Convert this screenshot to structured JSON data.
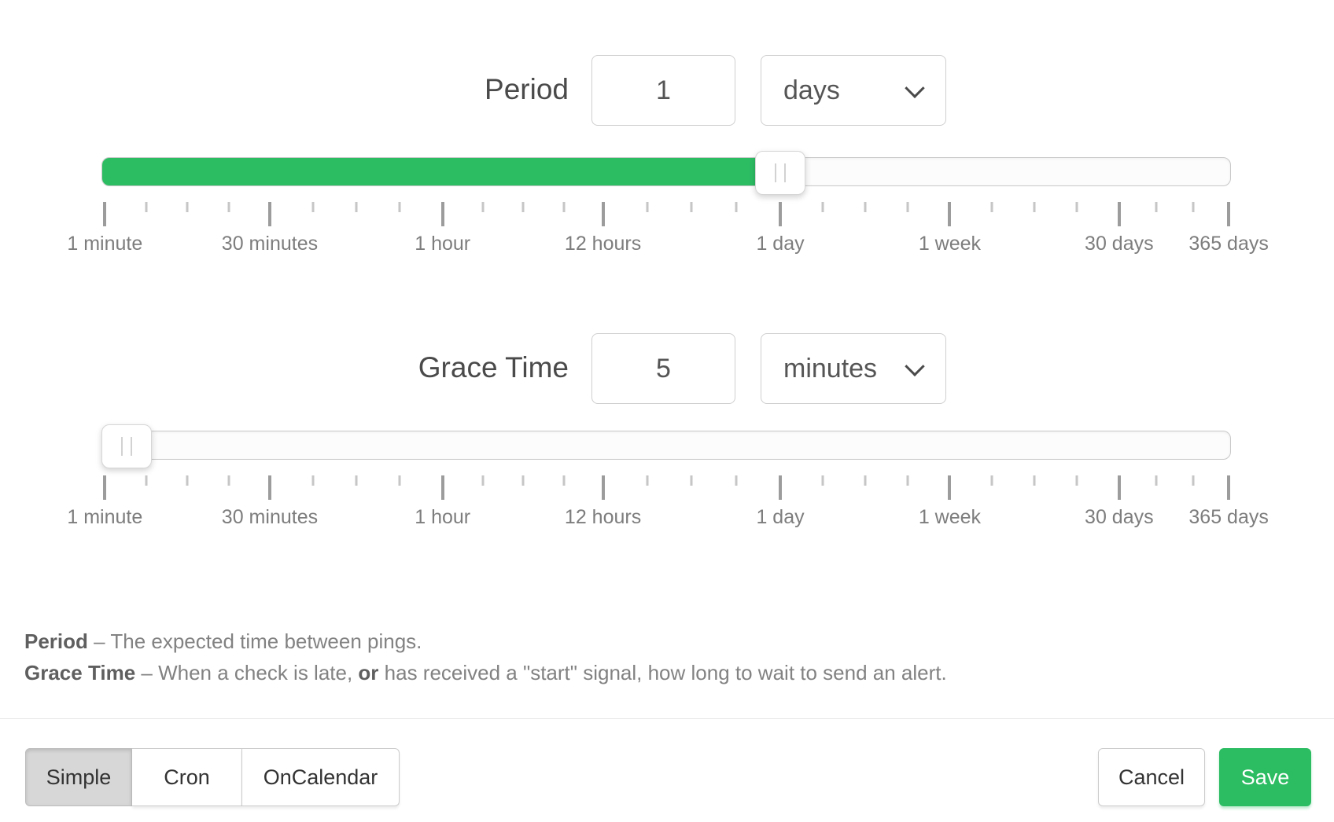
{
  "colors": {
    "accent_green": "#2cbc62",
    "handle_bg": "#ffffff",
    "track_bg": "#fcfcfc",
    "active_mode_bg": "#d7d7d7"
  },
  "period": {
    "label": "Period",
    "value": "1",
    "unit": "days",
    "slider": {
      "fill_percent": 60.1,
      "handle_percent": 60.1
    }
  },
  "grace": {
    "label": "Grace Time",
    "value": "5",
    "unit": "minutes",
    "slider": {
      "fill_percent": 2.2,
      "handle_percent": 2.2
    }
  },
  "scale": {
    "major_ticks": [
      {
        "pos": 0.3,
        "label": "1 minute"
      },
      {
        "pos": 14.9,
        "label": "30 minutes"
      },
      {
        "pos": 30.2,
        "label": "1 hour"
      },
      {
        "pos": 44.4,
        "label": "12 hours"
      },
      {
        "pos": 60.1,
        "label": "1 day"
      },
      {
        "pos": 75.1,
        "label": "1 week"
      },
      {
        "pos": 90.1,
        "label": "30 days"
      },
      {
        "pos": 99.8,
        "label": "365 days"
      }
    ],
    "minor_ticks": [
      3.95,
      7.6,
      11.25,
      18.73,
      22.55,
      26.38,
      33.78,
      37.35,
      40.93,
      48.33,
      52.25,
      56.18,
      63.85,
      67.6,
      71.35,
      78.85,
      82.6,
      86.35,
      93.37,
      96.63
    ]
  },
  "help_lines": [
    {
      "segments": [
        {
          "text": "Period",
          "bold": true
        },
        {
          "text": " – The expected time between pings.",
          "bold": false
        }
      ]
    },
    {
      "segments": [
        {
          "text": "Grace Time",
          "bold": true
        },
        {
          "text": " – When a check is late, ",
          "bold": false
        },
        {
          "text": "or",
          "bold": true
        },
        {
          "text": " has received a \"start\" signal, how long to wait to send an alert.",
          "bold": false
        }
      ]
    }
  ],
  "footer": {
    "mode_buttons": [
      {
        "label": "Simple",
        "active": true
      },
      {
        "label": "Cron",
        "active": false
      },
      {
        "label": "OnCalendar",
        "active": false
      }
    ],
    "cancel_label": "Cancel",
    "save_label": "Save"
  }
}
